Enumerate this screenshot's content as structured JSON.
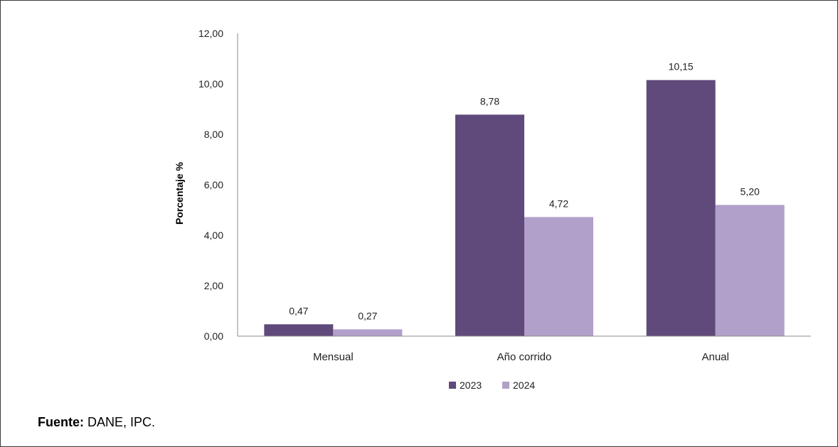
{
  "chart_data": {
    "type": "bar",
    "categories": [
      "Mensual",
      "Año corrido",
      "Anual"
    ],
    "series": [
      {
        "name": "2023",
        "values": [
          0.47,
          8.78,
          10.15
        ],
        "color": "#5f4a7b"
      },
      {
        "name": "2024",
        "values": [
          0.27,
          4.72,
          5.2
        ],
        "color": "#b1a0c9"
      }
    ],
    "ylabel": "Porcentaje %",
    "ylim": [
      0,
      12
    ],
    "yticks": [
      0,
      2,
      4,
      6,
      8,
      10,
      12
    ],
    "ytick_labels": [
      "0,00",
      "2,00",
      "4,00",
      "6,00",
      "8,00",
      "10,00",
      "12,00"
    ],
    "data_labels": [
      [
        "0,47",
        "8,78",
        "10,15"
      ],
      [
        "0,27",
        "4,72",
        "5,20"
      ]
    ],
    "grid": false,
    "legend_position": "bottom"
  },
  "source": {
    "label": "Fuente:",
    "text": " DANE, IPC."
  }
}
